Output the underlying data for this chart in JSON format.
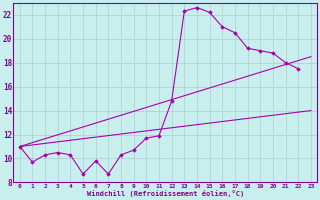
{
  "xlabel": "Windchill (Refroidissement éolien,°C)",
  "xlim": [
    -0.5,
    23.5
  ],
  "ylim": [
    8,
    23
  ],
  "yticks": [
    8,
    10,
    12,
    14,
    16,
    18,
    20,
    22
  ],
  "xticks": [
    0,
    1,
    2,
    3,
    4,
    5,
    6,
    7,
    8,
    9,
    10,
    11,
    12,
    13,
    14,
    15,
    16,
    17,
    18,
    19,
    20,
    21,
    22,
    23
  ],
  "bg_color": "#c8eeee",
  "grid_color": "#b0cccc",
  "line_color": "#aa00aa",
  "curve1_x": [
    0,
    1,
    2,
    3,
    4,
    5,
    6,
    7,
    8,
    9,
    10,
    11,
    12,
    13,
    14,
    15,
    16,
    17,
    18,
    19,
    20,
    21,
    22
  ],
  "curve1_y": [
    11.0,
    9.7,
    10.3,
    10.5,
    10.3,
    8.7,
    9.8,
    8.7,
    10.3,
    10.7,
    11.7,
    11.9,
    14.8,
    22.3,
    22.6,
    22.2,
    21.0,
    20.5,
    19.2,
    19.0,
    18.8,
    18.0,
    17.5
  ],
  "curve2_x": [
    0,
    23
  ],
  "curve2_y": [
    11.0,
    14.0
  ],
  "curve3_x": [
    0,
    23
  ],
  "curve3_y": [
    11.0,
    18.5
  ]
}
